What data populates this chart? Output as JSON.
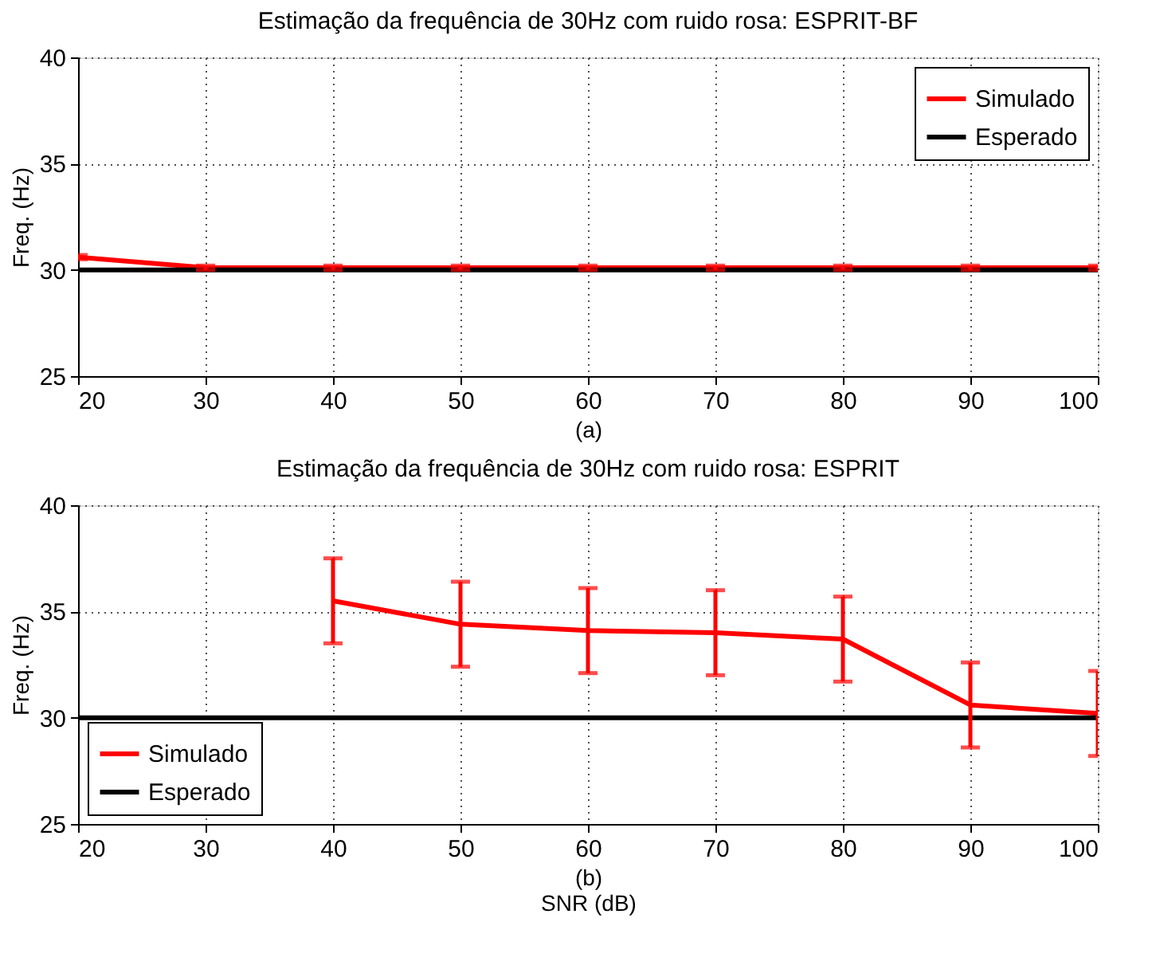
{
  "chart_data": [
    {
      "type": "line",
      "title": "Estimação da frequência de 30Hz com ruido rosa: ESPRIT-BF",
      "xlabel": "(a)",
      "ylabel": "Freq.  (Hz)",
      "xlim": [
        20,
        100
      ],
      "xticks": [
        20,
        30,
        40,
        50,
        60,
        70,
        80,
        90,
        100
      ],
      "ylim": [
        25,
        40
      ],
      "yticks": [
        25,
        30,
        35,
        40
      ],
      "grid": true,
      "legend": "top right",
      "series": [
        {
          "name": "Simulado",
          "color": "#ff0000",
          "x": [
            20,
            30,
            40,
            50,
            60,
            70,
            80,
            90,
            100
          ],
          "values": [
            30.6,
            30.1,
            30.1,
            30.1,
            30.1,
            30.1,
            30.1,
            30.1,
            30.1
          ],
          "errors": [
            0.1,
            0.1,
            0.1,
            0.1,
            0.1,
            0.1,
            0.1,
            0.1,
            0.1
          ]
        },
        {
          "name": "Esperado",
          "color": "#000000",
          "line_style": "solid",
          "x": [
            20,
            100
          ],
          "values": [
            30,
            30
          ]
        }
      ]
    },
    {
      "type": "line",
      "title": "Estimação da frequência de 30Hz com ruido rosa: ESPRIT",
      "xlabel": "(b)",
      "ylabel": "Freq.  (Hz)",
      "annotations": [
        "SNR (dB)"
      ],
      "xlim": [
        20,
        100
      ],
      "xticks": [
        20,
        30,
        40,
        50,
        60,
        70,
        80,
        90,
        100
      ],
      "ylim": [
        25,
        40
      ],
      "yticks": [
        25,
        30,
        35,
        40
      ],
      "grid": true,
      "legend": "bottom left",
      "series": [
        {
          "name": "Simulado",
          "color": "#ff0000",
          "x": [
            40,
            50,
            60,
            70,
            80,
            90,
            100
          ],
          "values": [
            35.5,
            34.4,
            34.1,
            34.0,
            33.7,
            30.6,
            30.2
          ],
          "errors": [
            2,
            2,
            2,
            2,
            2,
            2,
            2
          ]
        },
        {
          "name": "Esperado",
          "color": "#000000",
          "line_style": "solid",
          "x": [
            20,
            100
          ],
          "values": [
            30,
            30
          ]
        }
      ]
    }
  ]
}
